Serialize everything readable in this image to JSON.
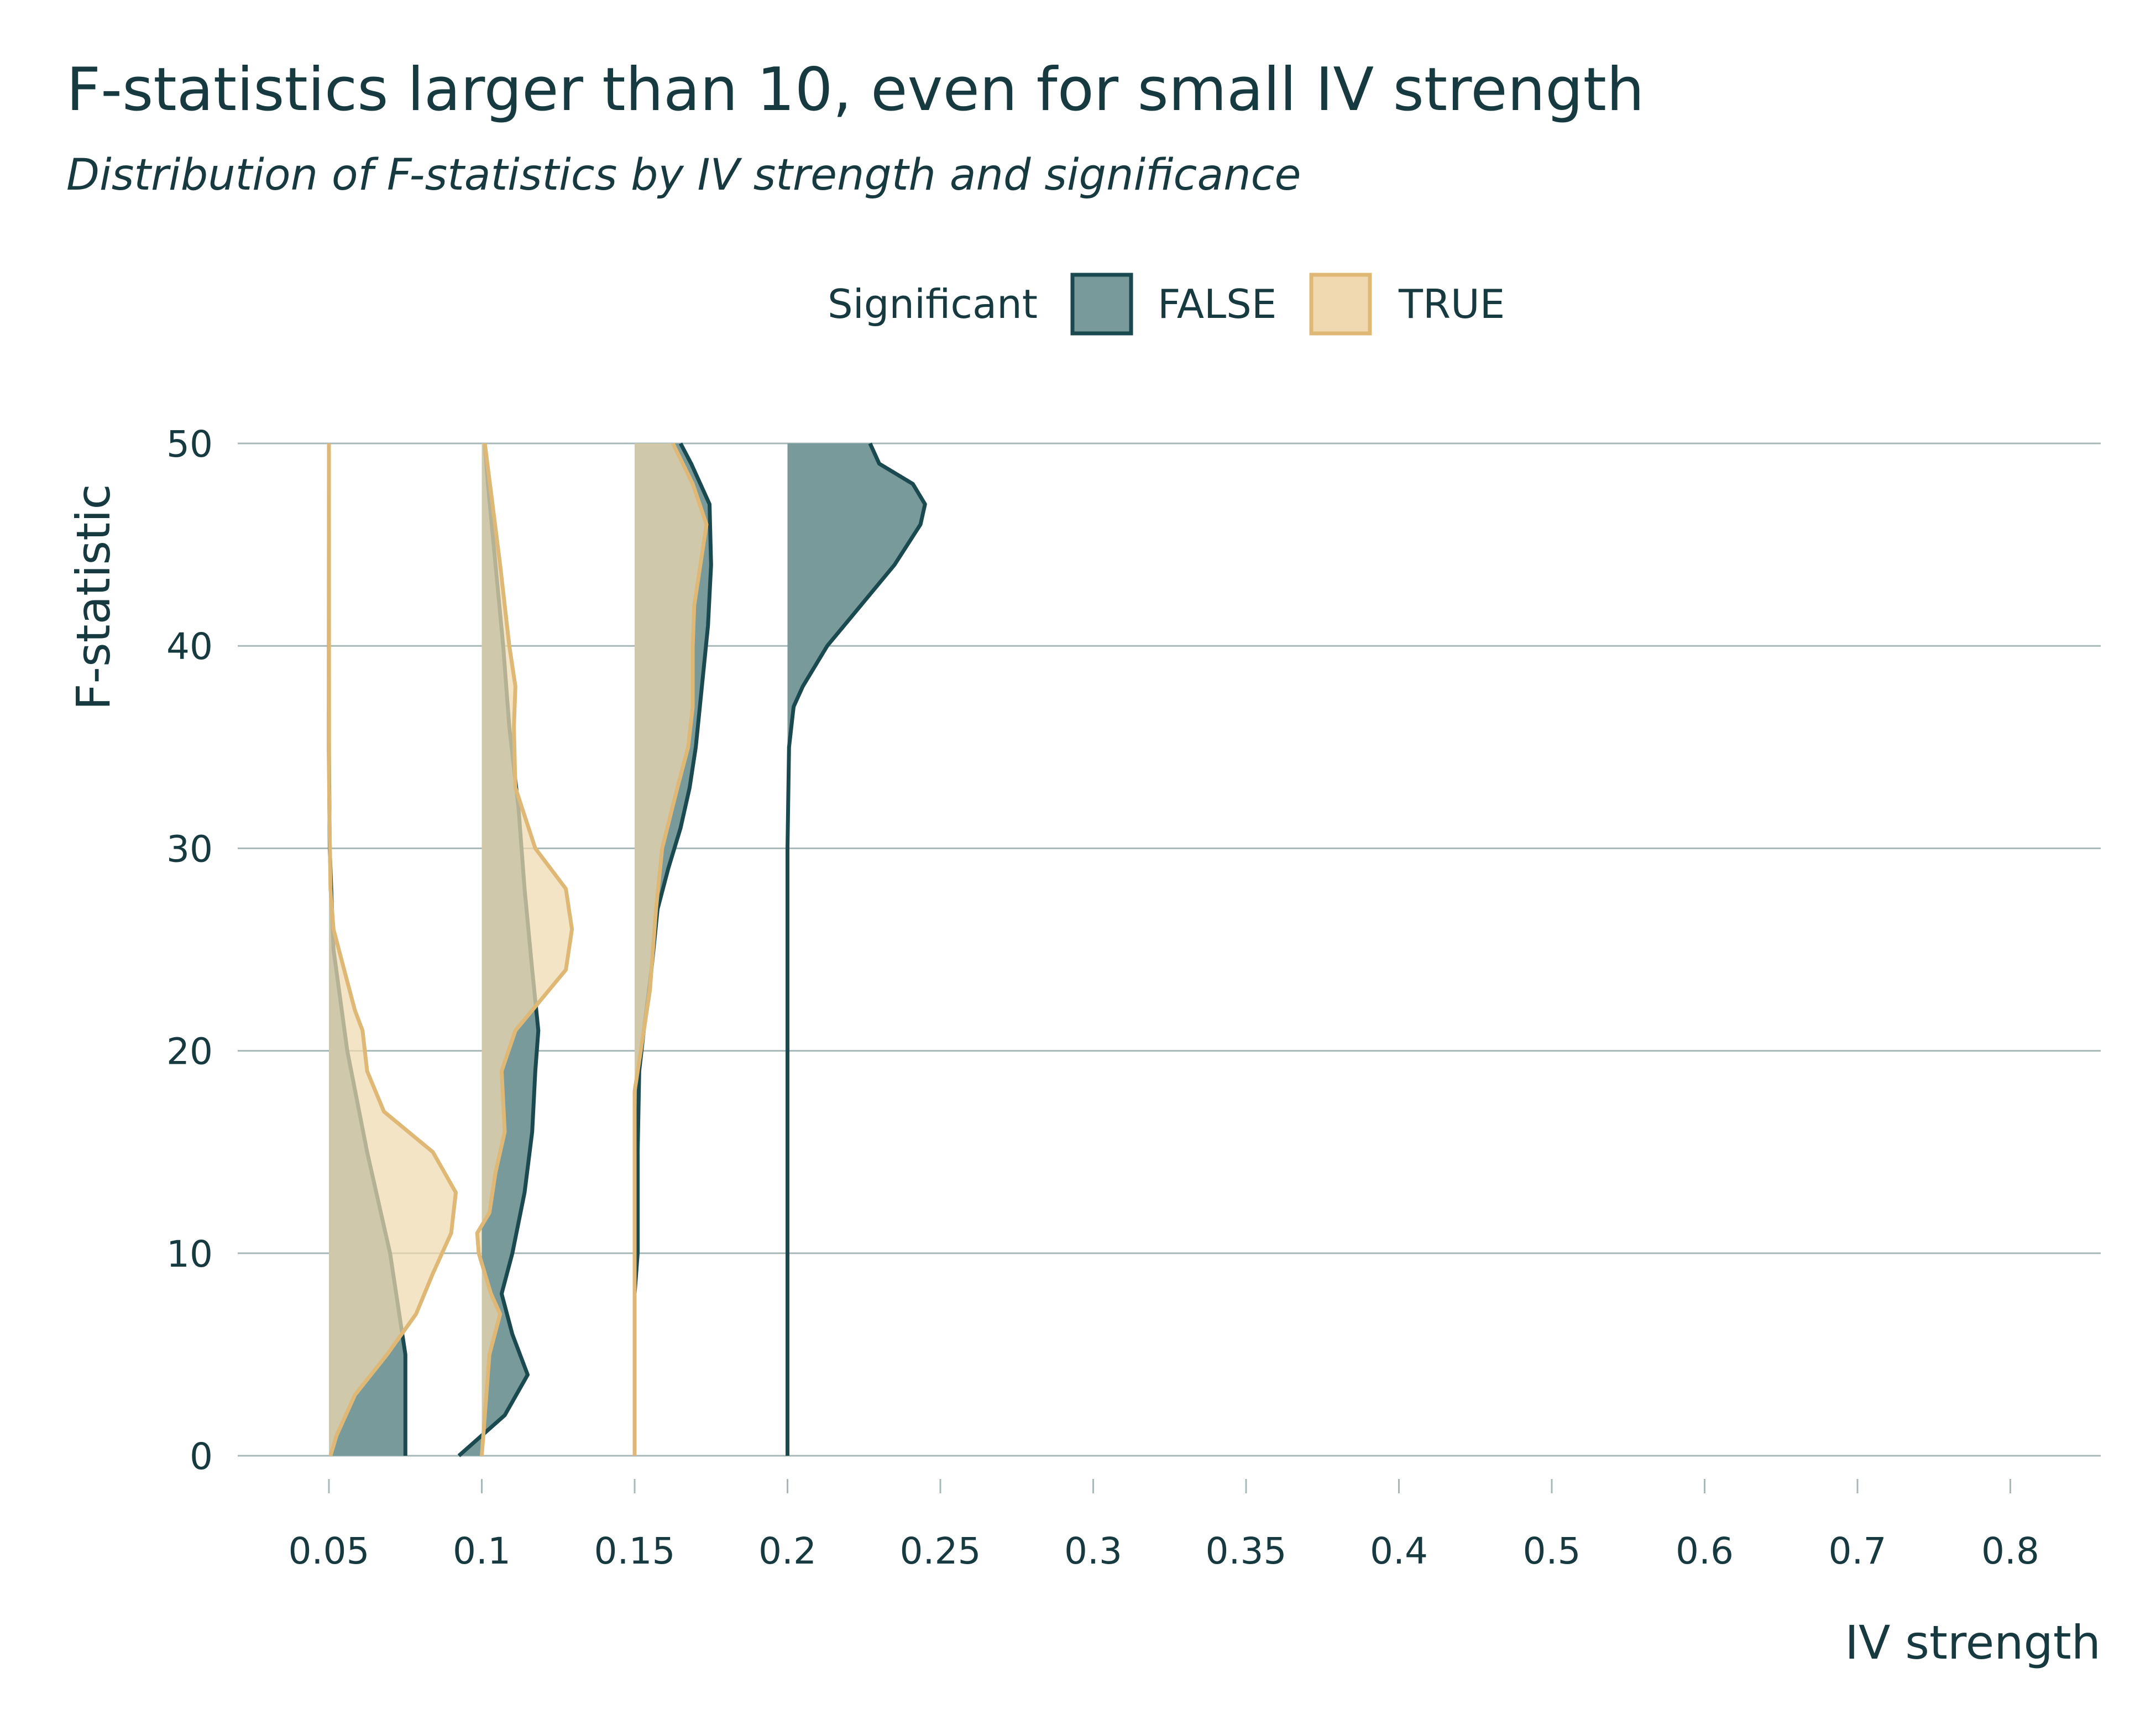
{
  "title": "F-statistics larger than 10, even for small IV strength",
  "subtitle": "Distribution of F-statistics by IV strength and significance",
  "colors": {
    "false_fill": "#799a9a",
    "false_stroke": "#1a4a4f",
    "true_fill": "#f0d9b0",
    "true_stroke": "#dfb876",
    "text": "#163a3f",
    "grid": "#a8b8b8"
  },
  "chart_data": {
    "type": "violin",
    "xlabel": "IV strength",
    "ylabel": "F-statistic",
    "ylim": [
      0,
      50
    ],
    "categories": [
      "0.05",
      "0.1",
      "0.15",
      "0.2",
      "0.25",
      "0.3",
      "0.35",
      "0.4",
      "0.5",
      "0.6",
      "0.7",
      "0.8"
    ],
    "yticks": [
      0,
      10,
      20,
      30,
      40,
      50
    ],
    "grid": true,
    "legend": {
      "title": "Significant",
      "position": "top",
      "entries": [
        "FALSE",
        "TRUE"
      ]
    },
    "series": [
      {
        "name": "FALSE",
        "violins": [
          {
            "category": "0.05",
            "profile": [
              [
                0,
                0.5
              ],
              [
                5,
                0.5
              ],
              [
                10,
                0.4
              ],
              [
                15,
                0.25
              ],
              [
                20,
                0.12
              ],
              [
                25,
                0.03
              ],
              [
                30,
                0.005
              ],
              [
                35,
                0
              ],
              [
                50,
                0
              ]
            ]
          },
          {
            "category": "0.1",
            "profile": [
              [
                0,
                -0.15
              ],
              [
                2,
                0.15
              ],
              [
                4,
                0.3
              ],
              [
                6,
                0.2
              ],
              [
                8,
                0.13
              ],
              [
                10,
                0.2
              ],
              [
                13,
                0.28
              ],
              [
                16,
                0.33
              ],
              [
                19,
                0.35
              ],
              [
                21,
                0.37
              ],
              [
                24,
                0.33
              ],
              [
                28,
                0.28
              ],
              [
                32,
                0.24
              ],
              [
                36,
                0.18
              ],
              [
                40,
                0.14
              ],
              [
                44,
                0.09
              ],
              [
                48,
                0.04
              ],
              [
                50,
                0.02
              ]
            ]
          },
          {
            "category": "0.15",
            "profile": [
              [
                0,
                0
              ],
              [
                8,
                0
              ],
              [
                10,
                0.02
              ],
              [
                15,
                0.02
              ],
              [
                19,
                0.03
              ],
              [
                21,
                0.06
              ],
              [
                24,
                0.11
              ],
              [
                27,
                0.15
              ],
              [
                29,
                0.22
              ],
              [
                31,
                0.3
              ],
              [
                33,
                0.36
              ],
              [
                35,
                0.4
              ],
              [
                38,
                0.44
              ],
              [
                41,
                0.48
              ],
              [
                44,
                0.5
              ],
              [
                47,
                0.49
              ],
              [
                49,
                0.37
              ],
              [
                50,
                0.3
              ]
            ]
          },
          {
            "category": "0.2",
            "profile": [
              [
                0,
                0
              ],
              [
                30,
                0.0
              ],
              [
                35,
                0.01
              ],
              [
                37,
                0.04
              ],
              [
                38,
                0.1
              ],
              [
                40,
                0.26
              ],
              [
                42,
                0.48
              ],
              [
                44,
                0.7
              ],
              [
                46,
                0.87
              ],
              [
                47,
                0.9
              ],
              [
                48,
                0.82
              ],
              [
                49,
                0.6
              ],
              [
                50,
                0.54
              ]
            ]
          }
        ]
      },
      {
        "name": "TRUE",
        "violins": [
          {
            "category": "0.05",
            "profile": [
              [
                0,
                0.01
              ],
              [
                1,
                0.05
              ],
              [
                3,
                0.17
              ],
              [
                5,
                0.38
              ],
              [
                7,
                0.57
              ],
              [
                9,
                0.68
              ],
              [
                11,
                0.8
              ],
              [
                13,
                0.83
              ],
              [
                15,
                0.68
              ],
              [
                17,
                0.36
              ],
              [
                19,
                0.25
              ],
              [
                21,
                0.22
              ],
              [
                22,
                0.17
              ],
              [
                24,
                0.1
              ],
              [
                26,
                0.03
              ],
              [
                28,
                0.01
              ],
              [
                33,
                0.001
              ],
              [
                50,
                0
              ]
            ]
          },
          {
            "category": "0.1",
            "profile": [
              [
                0,
                0
              ],
              [
                5,
                0.05
              ],
              [
                7,
                0.12
              ],
              [
                8,
                0.06
              ],
              [
                10,
                -0.02
              ],
              [
                11,
                -0.03
              ],
              [
                12,
                0.05
              ],
              [
                14,
                0.09
              ],
              [
                16,
                0.15
              ],
              [
                19,
                0.13
              ],
              [
                21,
                0.22
              ],
              [
                24,
                0.55
              ],
              [
                26,
                0.59
              ],
              [
                28,
                0.55
              ],
              [
                30,
                0.35
              ],
              [
                33,
                0.22
              ],
              [
                36,
                0.21
              ],
              [
                38,
                0.22
              ],
              [
                40,
                0.18
              ],
              [
                42,
                0.15
              ],
              [
                44,
                0.12
              ],
              [
                47,
                0.07
              ],
              [
                50,
                0.02
              ]
            ]
          },
          {
            "category": "0.15",
            "profile": [
              [
                0,
                0
              ],
              [
                18,
                0
              ],
              [
                20,
                0.04
              ],
              [
                23,
                0.1
              ],
              [
                27,
                0.14
              ],
              [
                30,
                0.18
              ],
              [
                33,
                0.28
              ],
              [
                35,
                0.35
              ],
              [
                37,
                0.38
              ],
              [
                40,
                0.38
              ],
              [
                42,
                0.39
              ],
              [
                44,
                0.43
              ],
              [
                46,
                0.47
              ],
              [
                48,
                0.38
              ],
              [
                50,
                0.25
              ]
            ]
          }
        ]
      }
    ]
  }
}
